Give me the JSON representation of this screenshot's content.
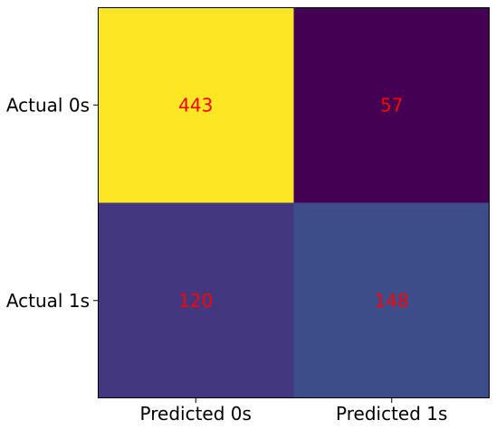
{
  "chart_data": {
    "type": "heatmap",
    "title": "",
    "xlabel": "",
    "ylabel": "",
    "x_categories": [
      "Predicted 0s",
      "Predicted 1s"
    ],
    "y_categories": [
      "Actual 0s",
      "Actual 1s"
    ],
    "values": [
      [
        443,
        57
      ],
      [
        120,
        148
      ]
    ],
    "colormap": "viridis",
    "value_range": [
      57,
      443
    ],
    "annotation_color": "#ff0000",
    "grid": false,
    "legend": "none"
  }
}
